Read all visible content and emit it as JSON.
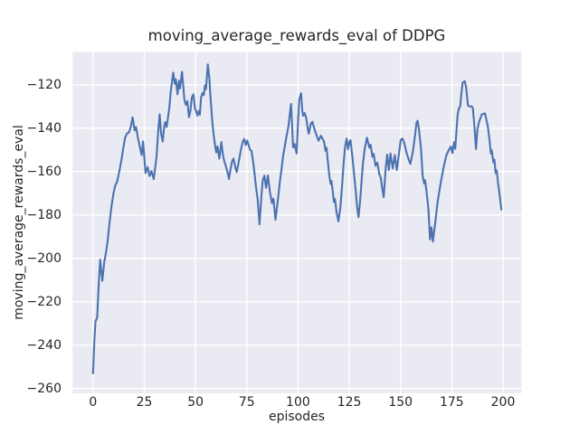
{
  "figure": {
    "title": "moving_average_rewards_eval of DDPG",
    "xlabel": "episodes",
    "ylabel": "moving_average_rewards_eval"
  },
  "colors": {
    "line": "#4C72B0",
    "axes_background": "#EAEAF2",
    "grid": "#FFFFFF",
    "text": "#262626",
    "figure_background": "#FFFFFF"
  },
  "chart_data": {
    "type": "line",
    "title": "moving_average_rewards_eval of DDPG",
    "xlabel": "episodes",
    "ylabel": "moving_average_rewards_eval",
    "x_ticks": [
      0,
      25,
      50,
      75,
      100,
      125,
      150,
      175,
      200
    ],
    "y_ticks": [
      -120,
      -140,
      -160,
      -180,
      -200,
      -220,
      -240,
      -260
    ],
    "xlim": [
      -9.95,
      208.95
    ],
    "ylim": [
      -262.2,
      -104.8
    ],
    "grid": true,
    "legend": "none",
    "series": [
      {
        "name": "moving_average_rewards_eval",
        "x": [
          0,
          0.7,
          1.2,
          2,
          2.9,
          3.5,
          4.5,
          5.5,
          6.2,
          7,
          8,
          9,
          10,
          10.8,
          11.8,
          12.8,
          13.8,
          14.8,
          15.6,
          16.5,
          17.5,
          18.4,
          19.3,
          20.3,
          21,
          21.8,
          22.8,
          23.7,
          24.4,
          25.6,
          26.6,
          27.6,
          28.5,
          29.6,
          31,
          31.8,
          32.5,
          33.2,
          34,
          34.7,
          35.2,
          35.9,
          37.2,
          37.9,
          39.1,
          39.9,
          40.4,
          41.2,
          41.9,
          42.4,
          43.4,
          44.1,
          44.6,
          45.3,
          46,
          46.8,
          47.5,
          48.2,
          49,
          49.7,
          50.5,
          50.9,
          51.5,
          52.1,
          52.7,
          53.4,
          54,
          54.6,
          55.1,
          56,
          56.8,
          57.1,
          58.2,
          58.9,
          59.7,
          60.1,
          60.7,
          61.6,
          62.6,
          63.4,
          64.1,
          65.6,
          66.3,
          67.1,
          67.8,
          68.5,
          69.6,
          70.1,
          71.1,
          72,
          73,
          73.7,
          74.5,
          75.2,
          76.6,
          77.3,
          78.1,
          78.8,
          79.5,
          80.3,
          81.2,
          82.2,
          82.8,
          83.6,
          84.4,
          85.3,
          86.3,
          87.3,
          88,
          89,
          90.5,
          91.2,
          92,
          92.7,
          94.2,
          95.3,
          96.6,
          97.6,
          98.3,
          99.3,
          100,
          100.6,
          101.5,
          102.1,
          102.5,
          103.2,
          104,
          104.8,
          105.2,
          106.3,
          107,
          108.5,
          110,
          111.2,
          112.7,
          113.4,
          113.9,
          114.4,
          115.3,
          115.9,
          116.3,
          117.1,
          117.5,
          118,
          118.8,
          119.7,
          120.7,
          121.5,
          122.2,
          122.9,
          123.7,
          124.4,
          125.1,
          125.6,
          126.6,
          127.3,
          128.1,
          128.8,
          129.5,
          130.3,
          131,
          131.7,
          132.5,
          133.6,
          134.8,
          135.4,
          136.3,
          136.9,
          137.8,
          138.7,
          139.6,
          140.4,
          141.1,
          141.8,
          142.8,
          143.5,
          144.3,
          145.1,
          146.2,
          147.2,
          148.2,
          149.2,
          150.1,
          151,
          152,
          153,
          154,
          154.8,
          156,
          157,
          157.8,
          158.3,
          159,
          160,
          160.8,
          161.5,
          162,
          163,
          163.6,
          164.4,
          165.1,
          165.8,
          167.2,
          168,
          169.4,
          170.9,
          172.4,
          173.8,
          174.6,
          175.3,
          176.1,
          176.7,
          177.3,
          177.9,
          178.5,
          179.1,
          179.7,
          180.3,
          181.3,
          182,
          182.9,
          183.6,
          184.7,
          185.3,
          186,
          186.8,
          187.5,
          188.3,
          189.7,
          191.2,
          192.6,
          193.4,
          194.1,
          194.5,
          195.3,
          195.8,
          196.4,
          196.9,
          197.6,
          198.3,
          199.2
        ],
        "y": [
          -253,
          -237,
          -229,
          -227.5,
          -209.5,
          -200.6,
          -210.4,
          -201.5,
          -198,
          -193,
          -184,
          -176,
          -170,
          -166.5,
          -164.5,
          -160,
          -155,
          -149,
          -144.5,
          -142.5,
          -142,
          -139.5,
          -135,
          -141,
          -139.5,
          -144,
          -148.5,
          -152.4,
          -146.1,
          -160.7,
          -157.9,
          -162.1,
          -159.8,
          -163.5,
          -153,
          -141.2,
          -133.6,
          -142.6,
          -146.1,
          -139.2,
          -137.2,
          -139.5,
          -130.7,
          -123.1,
          -114.4,
          -119.6,
          -117.5,
          -124.4,
          -118.2,
          -121.7,
          -114,
          -121.7,
          -127.2,
          -129.3,
          -127.5,
          -134.9,
          -132.1,
          -125.8,
          -124.4,
          -130.7,
          -132.8,
          -134.2,
          -132.1,
          -133.8,
          -125.8,
          -123.8,
          -124.8,
          -120.3,
          -122,
          -110.6,
          -117.5,
          -123.1,
          -137.3,
          -143.6,
          -149.1,
          -151.2,
          -148.4,
          -154,
          -146.4,
          -152.6,
          -155.4,
          -160.2,
          -163.4,
          -158.8,
          -155.4,
          -154,
          -158.8,
          -160.2,
          -155.4,
          -150.6,
          -146.4,
          -145,
          -147.8,
          -145.7,
          -150,
          -150.5,
          -155.4,
          -161,
          -167.2,
          -172.7,
          -184.3,
          -170.4,
          -164,
          -161.9,
          -167.5,
          -161.8,
          -169.5,
          -174.5,
          -172.5,
          -182.2,
          -170.4,
          -164.2,
          -158.5,
          -153,
          -144.7,
          -139.2,
          -128.8,
          -148.9,
          -147.3,
          -151.7,
          -137.1,
          -126.7,
          -123.9,
          -132.2,
          -134.3,
          -133,
          -135.4,
          -140.6,
          -142.6,
          -137.8,
          -137.1,
          -141.9,
          -145.8,
          -143.5,
          -146.2,
          -150.4,
          -149,
          -153.9,
          -162.2,
          -165.7,
          -164.3,
          -170.5,
          -174,
          -172.6,
          -178.9,
          -183,
          -176.1,
          -166.4,
          -156.7,
          -149,
          -144.8,
          -149.7,
          -146.2,
          -145.5,
          -153.9,
          -160.8,
          -168.4,
          -176.1,
          -181,
          -173.3,
          -164.3,
          -156,
          -149.7,
          -144.4,
          -149,
          -147.6,
          -153.2,
          -151.8,
          -157.4,
          -155.9,
          -161,
          -163,
          -168,
          -171.8,
          -158,
          -152.2,
          -159.3,
          -151.7,
          -158.6,
          -152.4,
          -159.3,
          -152,
          -145.4,
          -144.8,
          -147.5,
          -151.5,
          -154.5,
          -156.5,
          -151,
          -144,
          -137.5,
          -136.6,
          -140.5,
          -149.6,
          -162,
          -165.5,
          -164,
          -171.8,
          -177.4,
          -191.3,
          -185.7,
          -192.3,
          -181.5,
          -174.6,
          -166.3,
          -158.6,
          -152.4,
          -149.6,
          -148.5,
          -151.5,
          -146.5,
          -149.5,
          -141,
          -133.5,
          -130.8,
          -130,
          -124,
          -119,
          -118.3,
          -121.1,
          -129.5,
          -130,
          -129.9,
          -131,
          -138.5,
          -149.6,
          -140.6,
          -137.1,
          -133.6,
          -133.2,
          -139.2,
          -145.4,
          -151.7,
          -150.2,
          -155.8,
          -154.5,
          -160.7,
          -159.5,
          -165.5,
          -170.4,
          -177.5
        ]
      }
    ]
  }
}
